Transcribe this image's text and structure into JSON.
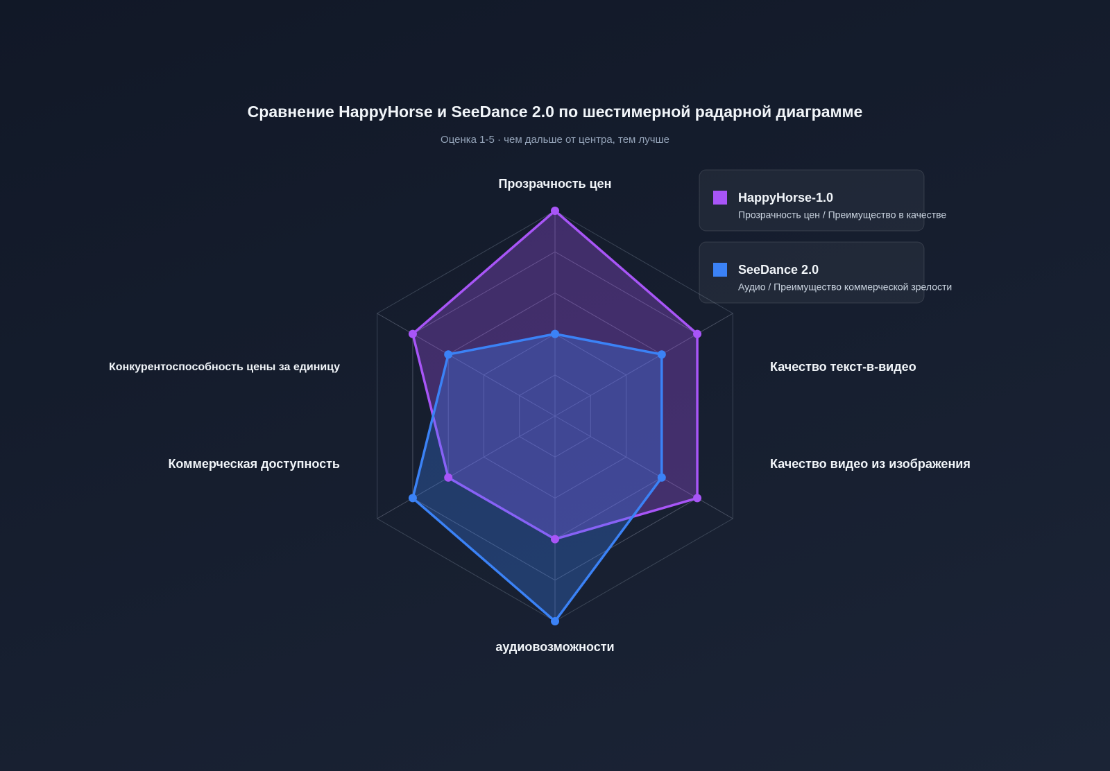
{
  "chart_data": {
    "type": "radar",
    "title": "Сравнение HappyHorse и SeeDance 2.0 по шестимерной радарной диаграмме",
    "subtitle": "Оценка 1-5 · чем дальше от центра, тем лучше",
    "categories": [
      "Прозрачность цен",
      "Качество текст-в-видео",
      "Качество видео из изображения",
      "аудиовозможности",
      "Коммерческая доступность",
      "Конкурентоспособность цены за единицу"
    ],
    "series": [
      {
        "name": "HappyHorse-1.0",
        "description": "Прозрачность цен / Преимущество в качестве",
        "color": "#a855f7",
        "values": [
          5,
          4,
          4,
          3,
          3,
          4
        ]
      },
      {
        "name": "SeeDance 2.0",
        "description": "Аудио / Преимущество коммерческой зрелости",
        "color": "#3b82f6",
        "values": [
          2,
          3,
          3,
          5,
          4,
          3
        ]
      }
    ],
    "rlim": [
      0,
      5
    ],
    "rticks": [
      1,
      2,
      3,
      4,
      5
    ],
    "grid": true,
    "legend": "top-right"
  }
}
